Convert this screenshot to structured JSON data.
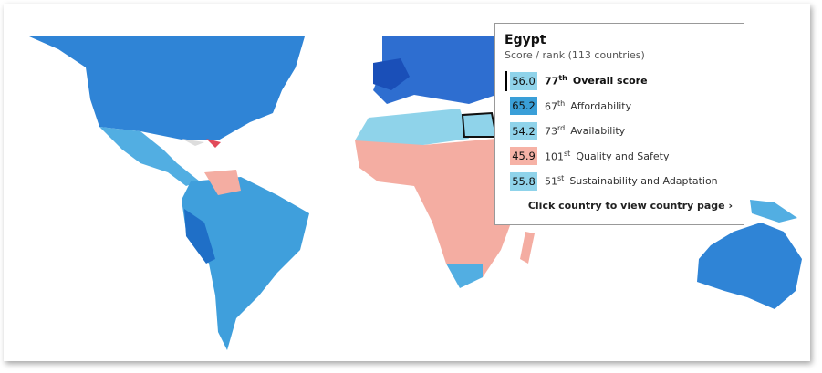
{
  "tooltip": {
    "country": "Egypt",
    "subtitle": "Score / rank (113 countries)",
    "rows": [
      {
        "score": "56.0",
        "rank": 77,
        "suffix": "th",
        "label": "Overall score"
      },
      {
        "score": "65.2",
        "rank": 67,
        "suffix": "th",
        "label": "Affordability"
      },
      {
        "score": "54.2",
        "rank": 73,
        "suffix": "rd",
        "label": "Availability"
      },
      {
        "score": "45.9",
        "rank": 101,
        "suffix": "st",
        "label": "Quality and Safety"
      },
      {
        "score": "55.8",
        "rank": 51,
        "suffix": "st",
        "label": "Sustainability and Adaptation"
      }
    ],
    "link": "Click country to view country page"
  }
}
